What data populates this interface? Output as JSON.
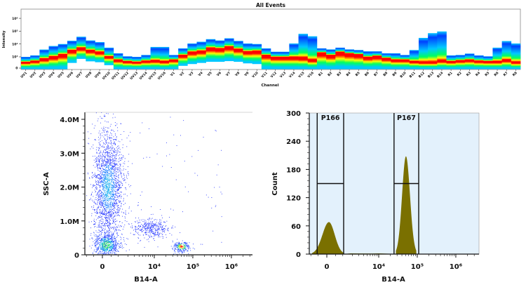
{
  "chart_data": [
    {
      "type": "heatmap",
      "title": "All Events",
      "xlabel": "Channel",
      "ylabel": "Intensity",
      "yticks": [
        "0",
        "10³",
        "10⁴",
        "10⁵",
        "10⁶"
      ],
      "ytick_values": [
        0,
        1000,
        10000,
        100000,
        1000000
      ],
      "colormap": [
        "#0040ff",
        "#00c8ff",
        "#00ff60",
        "#ffff00",
        "#ff0000"
      ],
      "channels": [
        {
          "name": "UV1",
          "top": 1000,
          "peak": 550,
          "low": 0
        },
        {
          "name": "UV2",
          "top": 1300,
          "peak": 650,
          "low": 0
        },
        {
          "name": "UV3",
          "top": 3700,
          "peak": 860,
          "low": 0
        },
        {
          "name": "UV4",
          "top": 7000,
          "peak": 1100,
          "low": 0
        },
        {
          "name": "UV5",
          "top": 10000,
          "peak": 1600,
          "low": 0
        },
        {
          "name": "UV6",
          "top": 18000,
          "peak": 3400,
          "low": 460
        },
        {
          "name": "UV7",
          "top": 37000,
          "peak": 5200,
          "low": 820
        },
        {
          "name": "UV8",
          "top": 19000,
          "peak": 3400,
          "low": 600
        },
        {
          "name": "UV9",
          "top": 14000,
          "peak": 2500,
          "low": 520
        },
        {
          "name": "UV10",
          "top": 5200,
          "peak": 1100,
          "low": 260
        },
        {
          "name": "UV11",
          "top": 1900,
          "peak": 760,
          "low": 0
        },
        {
          "name": "UV12",
          "top": 1100,
          "peak": 620,
          "low": 0
        },
        {
          "name": "UV13",
          "top": 1000,
          "peak": 560,
          "low": 0
        },
        {
          "name": "UV14",
          "top": 1400,
          "peak": 660,
          "low": 0
        },
        {
          "name": "UV15",
          "top": 5900,
          "peak": 700,
          "low": 0
        },
        {
          "name": "UV16",
          "top": 5900,
          "peak": 620,
          "low": 0
        },
        {
          "name": "V1",
          "top": 1400,
          "peak": 760,
          "low": 0
        },
        {
          "name": "V2",
          "top": 4600,
          "peak": 1400,
          "low": 200
        },
        {
          "name": "V3",
          "top": 11000,
          "peak": 2500,
          "low": 360
        },
        {
          "name": "V4",
          "top": 15000,
          "peak": 3000,
          "low": 460
        },
        {
          "name": "V5",
          "top": 24000,
          "peak": 5200,
          "low": 560
        },
        {
          "name": "V6",
          "top": 19000,
          "peak": 4600,
          "low": 560
        },
        {
          "name": "V7",
          "top": 28000,
          "peak": 6500,
          "low": 620
        },
        {
          "name": "V8",
          "top": 17500,
          "peak": 4200,
          "low": 560
        },
        {
          "name": "V9",
          "top": 11000,
          "peak": 2700,
          "low": 420
        },
        {
          "name": "V10",
          "top": 10000,
          "peak": 3000,
          "low": 360
        },
        {
          "name": "V11",
          "top": 4600,
          "peak": 1400,
          "low": 0
        },
        {
          "name": "V12",
          "top": 2500,
          "peak": 1000,
          "low": 0
        },
        {
          "name": "V13",
          "top": 2500,
          "peak": 1000,
          "low": 0
        },
        {
          "name": "V14",
          "top": 11000,
          "peak": 1000,
          "low": 0
        },
        {
          "name": "V15",
          "top": 62000,
          "peak": 960,
          "low": 0
        },
        {
          "name": "V16",
          "top": 40000,
          "peak": 760,
          "low": 0
        },
        {
          "name": "B1",
          "top": 4600,
          "peak": 2200,
          "low": 0
        },
        {
          "name": "B2",
          "top": 3800,
          "peak": 1400,
          "low": 0
        },
        {
          "name": "B3",
          "top": 5200,
          "peak": 2500,
          "low": 0
        },
        {
          "name": "B4",
          "top": 3800,
          "peak": 1900,
          "low": 0
        },
        {
          "name": "B5",
          "top": 3400,
          "peak": 1600,
          "low": 0
        },
        {
          "name": "B6",
          "top": 2700,
          "peak": 1000,
          "low": 0
        },
        {
          "name": "B7",
          "top": 2700,
          "peak": 1200,
          "low": 0
        },
        {
          "name": "B8",
          "top": 1900,
          "peak": 900,
          "low": 0
        },
        {
          "name": "B9",
          "top": 1900,
          "peak": 760,
          "low": 0
        },
        {
          "name": "B10",
          "top": 1400,
          "peak": 760,
          "low": 0
        },
        {
          "name": "B11",
          "top": 3400,
          "peak": 620,
          "low": 0
        },
        {
          "name": "B12",
          "top": 30000,
          "peak": 560,
          "low": 0
        },
        {
          "name": "B13",
          "top": 70000,
          "peak": 560,
          "low": 0
        },
        {
          "name": "B14",
          "top": 95000,
          "peak": 700,
          "low": 0
        },
        {
          "name": "R1",
          "top": 1300,
          "peak": 620,
          "low": 0
        },
        {
          "name": "R2",
          "top": 1400,
          "peak": 700,
          "low": 0
        },
        {
          "name": "R3",
          "top": 1800,
          "peak": 760,
          "low": 0
        },
        {
          "name": "R4",
          "top": 1300,
          "peak": 660,
          "low": 0
        },
        {
          "name": "R5",
          "top": 1100,
          "peak": 620,
          "low": 0
        },
        {
          "name": "R6",
          "top": 5200,
          "peak": 620,
          "low": 0
        },
        {
          "name": "R7",
          "top": 17000,
          "peak": 760,
          "low": 0
        },
        {
          "name": "R8",
          "top": 11000,
          "peak": 560,
          "low": 0
        }
      ]
    },
    {
      "type": "scatter",
      "xlabel": "B14-A",
      "ylabel": "SSC-A",
      "xscale": "biexponential",
      "xticks": [
        "0",
        "10⁴",
        "10⁵",
        "10⁶"
      ],
      "xtick_values": [
        0,
        10000,
        100000,
        1000000
      ],
      "yticks": [
        "0",
        "1.0M",
        "2.0M",
        "3.0M",
        "4.0M"
      ],
      "ytick_values": [
        0,
        1000000,
        2000000,
        3000000,
        4000000
      ],
      "ylim": [
        0,
        4200000
      ],
      "populations": [
        {
          "x": 200,
          "y": 300000,
          "count": 700,
          "color": "#10d080"
        },
        {
          "x": 300,
          "y": 2000000,
          "count": 2200,
          "color": "#2060ff"
        },
        {
          "x": 8000,
          "y": 800000,
          "count": 380,
          "color": "#2040ff"
        },
        {
          "x": 50000,
          "y": 250000,
          "count": 260,
          "color": "#ff2020"
        }
      ]
    },
    {
      "type": "histogram",
      "xlabel": "B14-A",
      "ylabel": "Count",
      "xscale": "biexponential",
      "xticks": [
        "0",
        "10⁴",
        "10⁵",
        "10⁶"
      ],
      "xtick_values": [
        0,
        10000,
        100000,
        1000000
      ],
      "yticks": [
        "0",
        "60",
        "120",
        "180",
        "240",
        "300"
      ],
      "ytick_values": [
        0,
        60,
        120,
        180,
        240,
        300
      ],
      "ylim": [
        0,
        300
      ],
      "fill_color": "#7a7000",
      "background_color": "#e3f1fc",
      "peaks": [
        {
          "x": 115,
          "count": 68,
          "range": [
            -900,
            1100
          ]
        },
        {
          "x": 51000,
          "count": 208,
          "range": [
            28000,
            95000
          ]
        }
      ],
      "gates": [
        {
          "name": "P166",
          "range": [
            -550,
            1070
          ],
          "level": 150
        },
        {
          "name": "P167",
          "range": [
            25000,
            109000
          ],
          "level": 150
        }
      ]
    }
  ]
}
